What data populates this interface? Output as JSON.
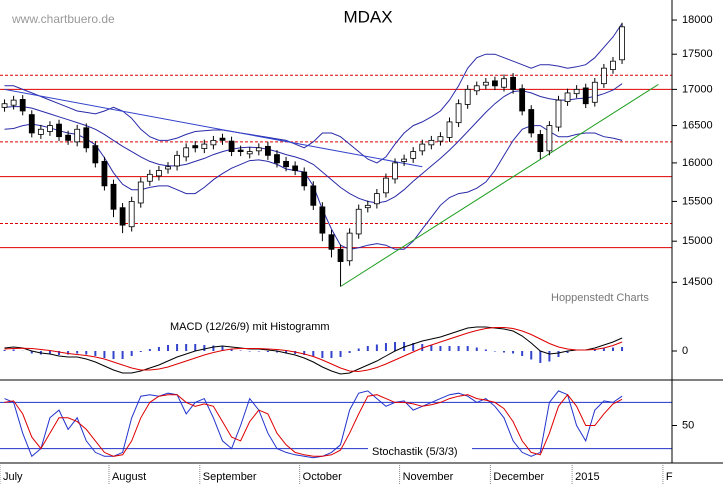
{
  "chart_data": [
    {
      "type": "candlestick",
      "title": "MDAX",
      "watermark": "www.chartbuero.de",
      "source": "Hoppenstedt Charts",
      "log_scale": true,
      "ylim": [
        14290,
        18300
      ],
      "yticks": [
        14500,
        15000,
        15500,
        16000,
        16500,
        17000,
        17500,
        18000
      ],
      "categories": [
        "July",
        null,
        null,
        null,
        null,
        null,
        null,
        null,
        null,
        null,
        null,
        null,
        "August",
        null,
        null,
        null,
        null,
        null,
        null,
        null,
        null,
        null,
        "September",
        null,
        null,
        null,
        null,
        null,
        null,
        null,
        null,
        null,
        null,
        "October",
        null,
        null,
        null,
        null,
        null,
        null,
        null,
        null,
        null,
        null,
        "November",
        null,
        null,
        null,
        null,
        null,
        null,
        null,
        null,
        null,
        "December",
        null,
        null,
        null,
        null,
        null,
        null,
        null,
        null,
        "2015",
        null,
        null,
        null,
        null,
        null,
        null,
        null,
        null,
        null,
        "F"
      ],
      "up_color": "#ffffff",
      "down_color": "#000000",
      "open": [
        16750,
        16780,
        16860,
        16650,
        16380,
        16420,
        16520,
        16370,
        16280,
        16470,
        16230,
        16020,
        15720,
        15420,
        15180,
        15480,
        15760,
        15830,
        15920,
        15960,
        16080,
        16230,
        16190,
        16240,
        16330,
        16290,
        16170,
        16120,
        16160,
        16220,
        16110,
        16020,
        15960,
        15880,
        15700,
        15430,
        15080,
        14900,
        14760,
        15090,
        15420,
        15470,
        15610,
        15790,
        16020,
        16060,
        16160,
        16240,
        16290,
        16340,
        16540,
        16790,
        16980,
        17060,
        17120,
        17030,
        17170,
        17010,
        16720,
        16380,
        16160,
        16480,
        16830,
        16940,
        17020,
        16820,
        17080,
        17280,
        17420,
        null,
        null,
        null,
        null,
        null
      ],
      "high": [
        16860,
        16910,
        16920,
        16710,
        16510,
        16560,
        16580,
        16430,
        16510,
        16530,
        16290,
        16080,
        15780,
        15480,
        15560,
        15810,
        15910,
        15960,
        16010,
        16160,
        16260,
        16290,
        16310,
        16360,
        16390,
        16350,
        16230,
        16210,
        16260,
        16280,
        16170,
        16080,
        16020,
        15940,
        15760,
        15490,
        15140,
        14960,
        15160,
        15460,
        15510,
        15660,
        15860,
        16060,
        16110,
        16210,
        16310,
        16360,
        16410,
        16610,
        16860,
        17060,
        17110,
        17160,
        17180,
        17210,
        17230,
        17070,
        16780,
        16440,
        16560,
        16910,
        17010,
        17060,
        17080,
        17160,
        17360,
        17460,
        17960,
        null,
        null,
        null,
        null,
        null
      ],
      "low": [
        16690,
        16720,
        16640,
        16340,
        16320,
        16360,
        16290,
        16240,
        16220,
        16140,
        15940,
        15640,
        15300,
        15100,
        15120,
        15420,
        15700,
        15770,
        15860,
        15900,
        16020,
        16140,
        16130,
        16180,
        16240,
        16090,
        16090,
        16060,
        16100,
        16040,
        15940,
        15890,
        15840,
        15640,
        15390,
        15000,
        14800,
        14450,
        14700,
        15030,
        15360,
        15410,
        15550,
        15730,
        15960,
        16000,
        16100,
        16180,
        16230,
        16280,
        16480,
        16730,
        16920,
        17000,
        16990,
        16970,
        16940,
        16640,
        16340,
        16050,
        16100,
        16420,
        16770,
        16880,
        16740,
        16760,
        17020,
        17220,
        17360,
        null,
        null,
        null,
        null,
        null
      ],
      "close": [
        16800,
        16850,
        16700,
        16400,
        16450,
        16500,
        16350,
        16300,
        16450,
        16200,
        16000,
        15700,
        15400,
        15200,
        15500,
        15750,
        15850,
        15900,
        15950,
        16100,
        16200,
        16200,
        16250,
        16300,
        16300,
        16150,
        16150,
        16150,
        16200,
        16100,
        16000,
        15950,
        15900,
        15700,
        15450,
        15100,
        14900,
        14750,
        15100,
        15400,
        15450,
        15600,
        15800,
        16000,
        16050,
        16150,
        16250,
        16300,
        16350,
        16550,
        16800,
        17000,
        17050,
        17100,
        17050,
        17150,
        17000,
        16700,
        16400,
        16150,
        16500,
        16850,
        16950,
        17000,
        16800,
        17100,
        17300,
        17400,
        17900,
        null,
        null,
        null,
        null,
        null
      ],
      "bands": [
        {
          "color": "#2a2aa8",
          "values": [
            17050,
            17050,
            17000,
            16950,
            16900,
            16850,
            16800,
            16750,
            16700,
            16680,
            16660,
            16700,
            16750,
            16700,
            16600,
            16450,
            16350,
            16300,
            16300,
            16330,
            16380,
            16420,
            16430,
            16440,
            16440,
            16420,
            16400,
            16380,
            16360,
            16340,
            16320,
            16300,
            16250,
            16200,
            16280,
            16400,
            16400,
            16350,
            16250,
            16150,
            16050,
            16000,
            16080,
            16250,
            16400,
            16500,
            16550,
            16620,
            16700,
            16850,
            17050,
            17300,
            17450,
            17500,
            17500,
            17450,
            17400,
            17350,
            17300,
            17350,
            17350,
            17330,
            17300,
            17320,
            17350,
            17450,
            17600,
            17750,
            17950,
            null,
            null,
            null,
            null,
            null
          ]
        },
        {
          "color": "#2a2aa8",
          "values": [
            16750,
            16760,
            16760,
            16740,
            16700,
            16660,
            16620,
            16580,
            16540,
            16500,
            16450,
            16380,
            16300,
            16220,
            16150,
            16080,
            16020,
            15980,
            15960,
            15960,
            15980,
            16020,
            16060,
            16110,
            16150,
            16180,
            16200,
            16210,
            16200,
            16180,
            16150,
            16110,
            16080,
            16040,
            15980,
            15880,
            15780,
            15680,
            15600,
            15540,
            15500,
            15480,
            15500,
            15560,
            15650,
            15760,
            15860,
            15960,
            16060,
            16170,
            16290,
            16420,
            16550,
            16680,
            16800,
            16900,
            16970,
            16980,
            16950,
            16900,
            16870,
            16850,
            16850,
            16870,
            16880,
            16900,
            16940,
            16990,
            17080,
            null,
            null,
            null,
            null,
            null
          ]
        },
        {
          "color": "#2a2aa8",
          "values": [
            16450,
            16460,
            16500,
            16520,
            16500,
            16470,
            16430,
            16400,
            16380,
            16320,
            16240,
            16070,
            15870,
            15720,
            15650,
            15650,
            15680,
            15700,
            15700,
            15650,
            15600,
            15600,
            15680,
            15780,
            15860,
            15930,
            15980,
            16030,
            16040,
            16020,
            15980,
            15920,
            15900,
            15880,
            15700,
            15400,
            15150,
            14950,
            14900,
            14920,
            14950,
            14970,
            14950,
            14900,
            14900,
            15000,
            15150,
            15300,
            15450,
            15550,
            15600,
            15620,
            15670,
            15750,
            15900,
            16100,
            16300,
            16450,
            16500,
            16500,
            16420,
            16350,
            16350,
            16380,
            16400,
            16400,
            16350,
            16330,
            16300,
            null,
            null,
            null,
            null,
            null
          ]
        }
      ],
      "hlines": [
        {
          "value": 17200,
          "style": "dashed",
          "color": "#e00000"
        },
        {
          "value": 17000,
          "style": "solid",
          "color": "#e00000"
        },
        {
          "value": 16280,
          "style": "dashed",
          "color": "#e00000"
        },
        {
          "value": 15820,
          "style": "solid",
          "color": "#e00000"
        },
        {
          "value": 15220,
          "style": "dashed",
          "color": "#e00000"
        },
        {
          "value": 14920,
          "style": "solid",
          "color": "#e00000"
        }
      ],
      "trendlines": [
        {
          "color": "#3344cc",
          "start": [
            0,
            17000
          ],
          "end": [
            46,
            15950
          ]
        },
        {
          "color": "#22a022",
          "start": [
            37,
            14450
          ],
          "end": [
            72,
            17070
          ]
        }
      ]
    },
    {
      "type": "line",
      "title": "MACD (12/26/9) mit Histogramm",
      "ylim": [
        -290,
        510
      ],
      "yticks": [
        0
      ],
      "series": [
        {
          "color": "#000000",
          "values": [
            30,
            40,
            30,
            0,
            -20,
            -30,
            -50,
            -60,
            -60,
            -80,
            -110,
            -150,
            -190,
            -220,
            -220,
            -200,
            -170,
            -140,
            -100,
            -60,
            -30,
            0,
            20,
            40,
            50,
            40,
            30,
            20,
            20,
            10,
            0,
            -20,
            -40,
            -70,
            -110,
            -160,
            -200,
            -230,
            -220,
            -180,
            -140,
            -100,
            -50,
            0,
            40,
            70,
            100,
            120,
            140,
            170,
            200,
            230,
            240,
            240,
            230,
            220,
            200,
            150,
            80,
            0,
            -30,
            -20,
            0,
            10,
            10,
            30,
            60,
            90,
            130,
            null,
            null,
            null,
            null,
            null
          ]
        },
        {
          "color": "#dd0000",
          "values": [
            20,
            25,
            28,
            25,
            15,
            5,
            -10,
            -25,
            -35,
            -45,
            -60,
            -80,
            -110,
            -140,
            -170,
            -190,
            -190,
            -180,
            -160,
            -130,
            -100,
            -70,
            -40,
            -15,
            5,
            20,
            25,
            25,
            25,
            20,
            15,
            5,
            -10,
            -30,
            -55,
            -90,
            -130,
            -170,
            -200,
            -205,
            -190,
            -165,
            -130,
            -90,
            -50,
            -10,
            30,
            60,
            90,
            120,
            150,
            180,
            205,
            225,
            235,
            235,
            225,
            200,
            165,
            120,
            75,
            40,
            20,
            10,
            10,
            15,
            30,
            55,
            90,
            null,
            null,
            null,
            null,
            null
          ]
        }
      ],
      "histogram": {
        "color": "#3344cc",
        "values": [
          10,
          15,
          2,
          -25,
          -35,
          -35,
          -40,
          -35,
          -25,
          -35,
          -50,
          -70,
          -80,
          -80,
          -50,
          -10,
          20,
          40,
          60,
          70,
          70,
          70,
          60,
          55,
          45,
          20,
          5,
          -5,
          -5,
          -10,
          -15,
          -25,
          -30,
          -40,
          -55,
          -70,
          -70,
          -60,
          -20,
          25,
          50,
          65,
          80,
          90,
          90,
          80,
          70,
          60,
          50,
          50,
          50,
          50,
          35,
          15,
          -5,
          -15,
          -25,
          -50,
          -85,
          -120,
          -105,
          -60,
          -20,
          0,
          0,
          15,
          30,
          35,
          40,
          null,
          null,
          null,
          null,
          null
        ]
      }
    },
    {
      "type": "line",
      "title": "Stochastik (5/3/3)",
      "ylim": [
        0,
        100
      ],
      "yticks": [
        50
      ],
      "hlines": [
        {
          "value": 20,
          "style": "solid",
          "color": "#2233cc"
        },
        {
          "value": 80,
          "style": "solid",
          "color": "#2233cc"
        }
      ],
      "series": [
        {
          "color": "#2233cc",
          "values": [
            85,
            80,
            40,
            10,
            20,
            60,
            70,
            45,
            60,
            30,
            15,
            10,
            10,
            15,
            60,
            88,
            90,
            88,
            92,
            90,
            65,
            80,
            85,
            60,
            30,
            20,
            50,
            85,
            70,
            40,
            20,
            15,
            12,
            10,
            8,
            10,
            15,
            25,
            70,
            92,
            95,
            85,
            75,
            80,
            82,
            70,
            75,
            80,
            85,
            90,
            92,
            88,
            80,
            85,
            75,
            60,
            30,
            15,
            10,
            15,
            80,
            95,
            90,
            50,
            30,
            70,
            82,
            80,
            88,
            null,
            null,
            null,
            null,
            null
          ]
        },
        {
          "color": "#dd0000",
          "values": [
            80,
            82,
            65,
            35,
            20,
            40,
            60,
            60,
            55,
            45,
            30,
            15,
            10,
            12,
            30,
            60,
            80,
            88,
            90,
            90,
            80,
            75,
            78,
            75,
            55,
            35,
            30,
            55,
            70,
            65,
            40,
            25,
            15,
            12,
            10,
            10,
            12,
            18,
            40,
            65,
            88,
            90,
            85,
            80,
            80,
            78,
            75,
            77,
            80,
            85,
            88,
            90,
            85,
            83,
            80,
            72,
            55,
            30,
            15,
            12,
            40,
            75,
            90,
            75,
            50,
            50,
            65,
            78,
            84,
            null,
            null,
            null,
            null,
            null
          ]
        }
      ]
    }
  ]
}
